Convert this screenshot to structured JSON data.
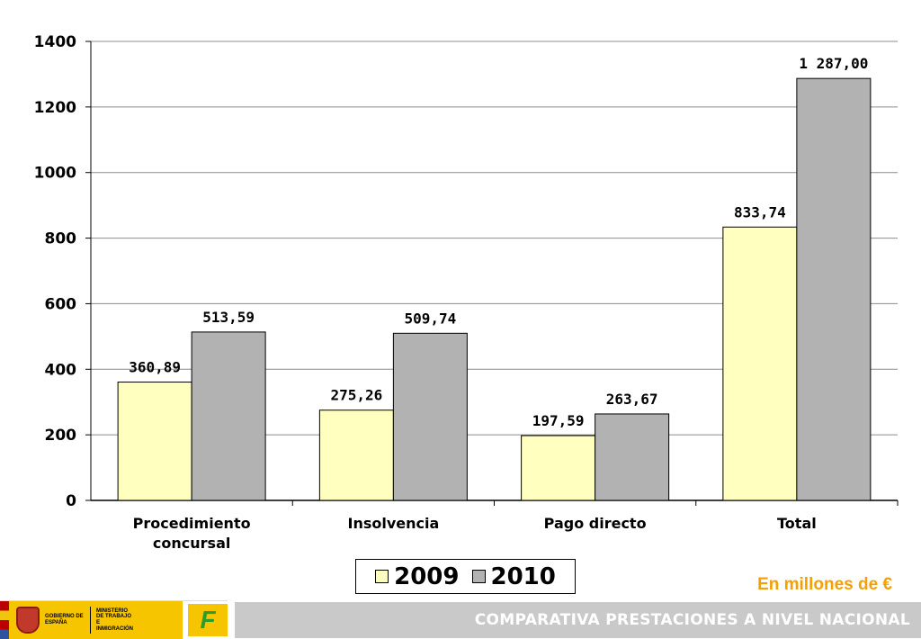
{
  "chart_data": {
    "type": "bar",
    "categories": [
      [
        "Procedimiento",
        "concursal"
      ],
      [
        "Insolvencia"
      ],
      [
        "Pago directo"
      ],
      [
        "Total"
      ]
    ],
    "series": [
      {
        "name": "2009",
        "values": [
          360.89,
          275.26,
          197.59,
          833.74
        ],
        "labels": [
          "360,89",
          "275,26",
          "197,59",
          "833,74"
        ],
        "color": "#ffffc0"
      },
      {
        "name": "2010",
        "values": [
          513.59,
          509.74,
          263.67,
          1287.0
        ],
        "labels": [
          "513,59",
          "509,74",
          "263,67",
          "1 287,00"
        ],
        "color": "#b2b2b2"
      }
    ],
    "ylim": [
      0,
      1400
    ],
    "yticks": [
      "0",
      "200",
      "400",
      "600",
      "800",
      "1000",
      "1200",
      "1400"
    ],
    "ytick_values": [
      0,
      200,
      400,
      600,
      800,
      1000,
      1200,
      1400
    ],
    "grid": true,
    "legend": "bottom"
  },
  "units_note": "En millones de €",
  "footer": {
    "title": "COMPARATIVA PRESTACIONES A NIVEL NACIONAL",
    "gov_text_1": "GOBIERNO DE ESPAÑA",
    "gov_text_2": "MINISTERIO DE TRABAJO E INMIGRACIÓN",
    "fogasa_mark": "F"
  }
}
